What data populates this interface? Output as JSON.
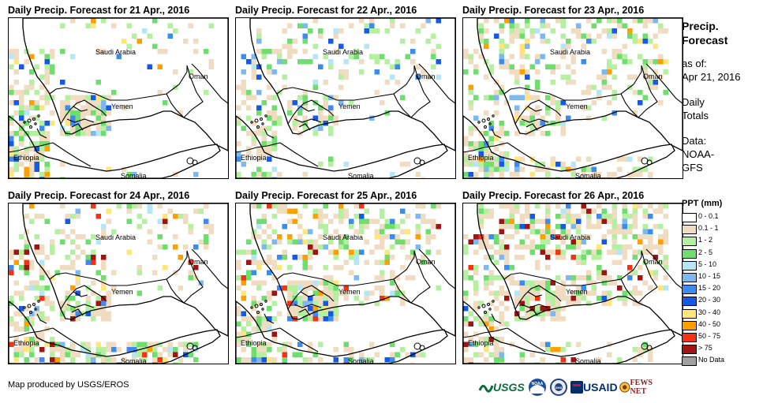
{
  "panels": [
    {
      "title": "Daily Precip. Forecast for 21 Apr., 2016"
    },
    {
      "title": "Daily Precip. Forecast for 22 Apr., 2016"
    },
    {
      "title": "Daily Precip. Forecast for 23 Apr., 2016"
    },
    {
      "title": "Daily Precip. Forecast for 24 Apr., 2016"
    },
    {
      "title": "Daily Precip. Forecast for 25 Apr., 2016"
    },
    {
      "title": "Daily Precip. Forecast for 26 Apr., 2016"
    }
  ],
  "country_labels": [
    "Saudi Arabia",
    "Oman",
    "Yemen",
    "Ethiopia",
    "Somalia"
  ],
  "side": {
    "title_line1": "Precip.",
    "title_line2": "Forecast",
    "asof_label": "as of:",
    "asof_date": "Apr 21, 2016",
    "daily_line1": "Daily",
    "daily_line2": "Totals",
    "data_label": "Data:",
    "data_line1": "NOAA-",
    "data_line2": "GFS"
  },
  "legend": {
    "title": "PPT (mm)",
    "items": [
      {
        "label": "0 - 0.1",
        "color": "#ffffff"
      },
      {
        "label": "0.1 - 1",
        "color": "#f0dcc0"
      },
      {
        "label": "1 - 2",
        "color": "#b4f0a0"
      },
      {
        "label": "2 - 5",
        "color": "#6ede6e"
      },
      {
        "label": "5 - 10",
        "color": "#b4e6f5"
      },
      {
        "label": "10 - 15",
        "color": "#7db9f0"
      },
      {
        "label": "15 - 20",
        "color": "#3c8cf0"
      },
      {
        "label": "20 - 30",
        "color": "#145ae6"
      },
      {
        "label": "30 - 40",
        "color": "#ffe678"
      },
      {
        "label": "40 - 50",
        "color": "#ffa000"
      },
      {
        "label": "50 - 75",
        "color": "#f53214"
      },
      {
        "label": "> 75",
        "color": "#a01414"
      },
      {
        "label": "No Data",
        "color": "#a0a0a0"
      }
    ]
  },
  "credit": "Map produced by USGS/EROS",
  "logos": [
    "USGS",
    "NOAA",
    "DHS",
    "USAID",
    "FEWS NET"
  ]
}
